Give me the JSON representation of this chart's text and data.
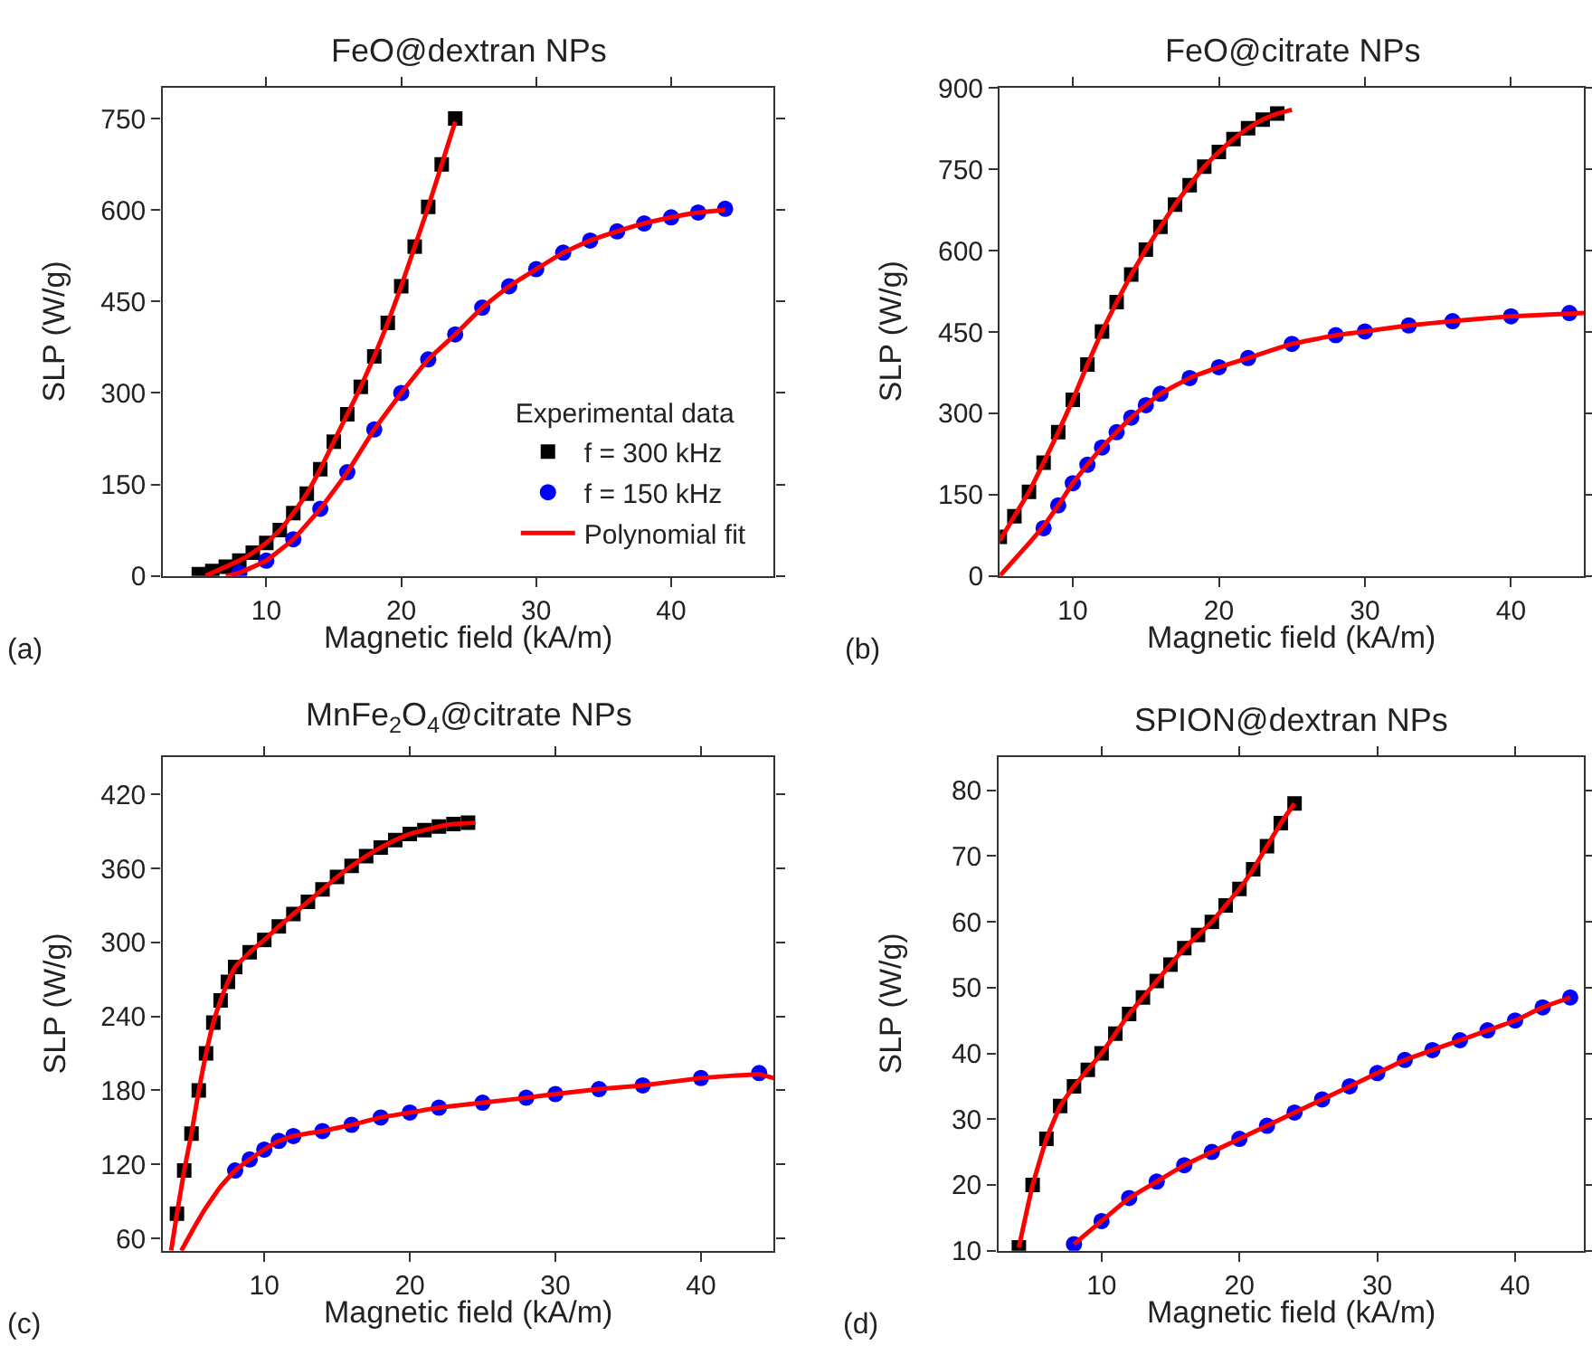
{
  "chart_data": [
    {
      "type": "scatter",
      "title": "FeO@dextran NPs",
      "xlabel": "Magnetic field (kA/m)",
      "ylabel": "SLP (W/g)",
      "annotations": [
        "(a)"
      ],
      "xlim": [
        2.3,
        47.6
      ],
      "xticks": [
        10,
        20,
        30,
        40
      ],
      "ylim": [
        0,
        800
      ],
      "yticks": [
        0,
        150,
        300,
        450,
        600,
        750
      ],
      "legend": "bottom right",
      "legend_title": "Experimental data",
      "series": [
        {
          "name": "f = 300 kHz",
          "marker": "square",
          "color": "#000000",
          "x": [
            5,
            6,
            7,
            8,
            9,
            10,
            11,
            12,
            13,
            14,
            15,
            16,
            17,
            18,
            19,
            20,
            21,
            22,
            23,
            24
          ],
          "values": [
            3,
            8,
            15,
            25,
            38,
            54,
            75,
            103,
            135,
            175,
            220,
            265,
            310,
            360,
            415,
            475,
            540,
            605,
            675,
            750
          ]
        },
        {
          "name": "f = 150 kHz",
          "marker": "circle",
          "color": "#0000ff",
          "x": [
            8,
            10,
            12,
            14,
            16,
            18,
            20,
            22,
            24,
            26,
            28,
            30,
            32,
            34,
            36,
            38,
            40,
            42,
            44
          ],
          "values": [
            5,
            25,
            60,
            110,
            170,
            240,
            300,
            355,
            396,
            440,
            475,
            503,
            530,
            550,
            565,
            578,
            588,
            596,
            602
          ]
        },
        {
          "name": "Polynomial fit",
          "type": "line",
          "marker": "none",
          "line_style": "solid",
          "color": "#ff0000",
          "x": [
            5.5,
            7,
            8,
            9,
            10,
            11,
            12,
            13,
            14,
            15,
            16,
            17,
            18,
            19,
            20,
            21,
            22,
            23,
            24
          ],
          "values": [
            0,
            15,
            25,
            38,
            54,
            75,
            103,
            135,
            175,
            220,
            265,
            310,
            360,
            415,
            475,
            540,
            605,
            675,
            745
          ]
        },
        {
          "type": "line",
          "marker": "none",
          "line_style": "solid",
          "color": "#ff0000",
          "x": [
            7,
            8,
            10,
            12,
            14,
            16,
            18,
            20,
            22,
            24,
            26,
            28,
            30,
            32,
            34,
            36,
            38,
            40,
            42,
            44
          ],
          "values": [
            0,
            5,
            25,
            60,
            110,
            170,
            240,
            300,
            355,
            396,
            440,
            475,
            503,
            530,
            550,
            565,
            578,
            588,
            596,
            600
          ]
        }
      ]
    },
    {
      "type": "scatter",
      "title": "FeO@citrate NPs",
      "xlabel": "Magnetic field (kA/m)",
      "ylabel": "SLP (W/g)",
      "annotations": [
        "(b)"
      ],
      "xlim": [
        5,
        45
      ],
      "xticks": [
        10,
        20,
        30,
        40
      ],
      "ylim": [
        0,
        900
      ],
      "yticks": [
        0,
        150,
        300,
        450,
        600,
        750,
        900
      ],
      "legend": false,
      "series": [
        {
          "marker": "square",
          "color": "#000000",
          "x": [
            5,
            6,
            7,
            8,
            9,
            10,
            11,
            12,
            13,
            14,
            15,
            16,
            17,
            18,
            19,
            20,
            21,
            22,
            23,
            24
          ],
          "values": [
            72,
            110,
            155,
            209,
            265,
            325,
            390,
            451,
            505,
            556,
            602,
            644,
            685,
            721,
            755,
            782,
            806,
            826,
            842,
            853
          ]
        },
        {
          "marker": "circle",
          "color": "#0000ff",
          "x": [
            8,
            9,
            10,
            11,
            12,
            13,
            14,
            15,
            16,
            18,
            20,
            22,
            25,
            28,
            30,
            33,
            36,
            40,
            44
          ],
          "values": [
            88,
            130,
            171,
            205,
            237,
            265,
            292,
            315,
            336,
            365,
            385,
            402,
            428,
            444,
            451,
            462,
            470,
            479,
            485
          ]
        },
        {
          "type": "line",
          "marker": "none",
          "line_style": "solid",
          "color": "#ff0000",
          "x": [
            5,
            6,
            7,
            8,
            9,
            10,
            11,
            12,
            13,
            14,
            15,
            16,
            17,
            18,
            19,
            20,
            21,
            22,
            23,
            24,
            25
          ],
          "values": [
            65,
            110,
            155,
            209,
            265,
            325,
            390,
            451,
            505,
            556,
            602,
            644,
            685,
            721,
            755,
            782,
            806,
            826,
            842,
            853,
            860
          ]
        },
        {
          "type": "line",
          "marker": "none",
          "line_style": "solid",
          "color": "#ff0000",
          "x": [
            5,
            6,
            7,
            8,
            9,
            10,
            11,
            12,
            13,
            14,
            15,
            16,
            18,
            20,
            22,
            25,
            28,
            30,
            33,
            36,
            40,
            45
          ],
          "values": [
            0,
            30,
            60,
            92,
            130,
            171,
            205,
            237,
            265,
            292,
            315,
            336,
            365,
            385,
            402,
            428,
            444,
            451,
            462,
            470,
            479,
            485
          ]
        }
      ]
    },
    {
      "type": "scatter",
      "title": "MnFe$_{2}$O$_{4}$@citrate NPs",
      "xlabel": "Magnetic field (kA/m)",
      "ylabel": "SLP (W/g)",
      "annotations": [
        "(c)"
      ],
      "xlim": [
        3,
        45
      ],
      "xticks": [
        10,
        20,
        30,
        40
      ],
      "ylim": [
        50,
        450
      ],
      "yticks": [
        60,
        120,
        180,
        240,
        300,
        360,
        420
      ],
      "legend": false,
      "series": [
        {
          "marker": "square",
          "color": "#000000",
          "x": [
            4,
            4.5,
            5,
            5.5,
            6,
            6.5,
            7,
            7.5,
            8,
            9,
            10,
            11,
            12,
            13,
            14,
            15,
            16,
            17,
            18,
            19,
            20,
            21,
            22,
            23,
            24
          ],
          "values": [
            80,
            115,
            145,
            180,
            210,
            235,
            253,
            268,
            280,
            292,
            302,
            313,
            323,
            333,
            343,
            353,
            362,
            370,
            377,
            383,
            388,
            391,
            394,
            396,
            397
          ]
        },
        {
          "marker": "circle",
          "color": "#0000ff",
          "x": [
            8,
            9,
            10,
            11,
            12,
            14,
            16,
            18,
            20,
            22,
            25,
            28,
            30,
            33,
            36,
            40,
            44
          ],
          "values": [
            115,
            124,
            132,
            139,
            143,
            147,
            152,
            158,
            162,
            166,
            170,
            174,
            177,
            181,
            184,
            190,
            194
          ]
        },
        {
          "type": "line",
          "marker": "none",
          "line_style": "solid",
          "color": "#ff0000",
          "x": [
            3.6,
            4,
            4.5,
            5,
            5.5,
            6,
            6.5,
            7,
            7.5,
            8,
            9,
            10,
            11,
            12,
            13,
            14,
            15,
            16,
            17,
            18,
            19,
            20,
            21,
            22,
            23,
            24.5
          ],
          "values": [
            50,
            80,
            115,
            145,
            180,
            210,
            235,
            253,
            268,
            280,
            292,
            302,
            313,
            323,
            333,
            343,
            353,
            362,
            370,
            377,
            383,
            388,
            391,
            394,
            396,
            397
          ]
        },
        {
          "type": "line",
          "marker": "none",
          "line_style": "solid",
          "color": "#ff0000",
          "x": [
            4.3,
            5,
            6,
            7,
            8,
            9,
            10,
            11,
            12,
            14,
            16,
            18,
            20,
            22,
            25,
            28,
            30,
            33,
            36,
            40,
            44,
            45
          ],
          "values": [
            50,
            65,
            85,
            102,
            115,
            124,
            132,
            139,
            143,
            147,
            152,
            158,
            162,
            166,
            170,
            174,
            177,
            181,
            184,
            190,
            193,
            190
          ]
        }
      ]
    },
    {
      "type": "scatter",
      "title": "SPION@dextran NPs",
      "xlabel": "Magnetic field (kA/m)",
      "ylabel": "SLP (W/g)",
      "annotations": [
        "(d)"
      ],
      "xlim": [
        2.5,
        45
      ],
      "xticks": [
        10,
        20,
        30,
        40
      ],
      "ylim": [
        10,
        85
      ],
      "yticks": [
        10,
        20,
        30,
        40,
        50,
        60,
        70,
        80
      ],
      "legend": false,
      "series": [
        {
          "marker": "square",
          "color": "#000000",
          "x": [
            4,
            5,
            6,
            7,
            8,
            9,
            10,
            11,
            12,
            13,
            14,
            15,
            16,
            17,
            18,
            19,
            20,
            21,
            22,
            23,
            24
          ],
          "values": [
            10.5,
            20,
            27,
            32,
            35,
            37.5,
            40,
            43,
            46,
            48.5,
            51,
            53.5,
            56,
            58,
            60,
            62.5,
            65,
            68,
            71.5,
            75,
            78
          ]
        },
        {
          "marker": "circle",
          "color": "#0000ff",
          "x": [
            8,
            10,
            12,
            14,
            16,
            18,
            20,
            22,
            24,
            26,
            28,
            30,
            32,
            34,
            36,
            38,
            40,
            42,
            44
          ],
          "values": [
            11,
            14.5,
            18,
            20.5,
            23,
            25,
            27,
            29,
            31,
            33,
            35,
            37,
            39,
            40.5,
            42,
            43.5,
            45,
            47,
            48.5
          ]
        },
        {
          "type": "line",
          "marker": "none",
          "line_style": "solid",
          "color": "#ff0000",
          "x": [
            4,
            5,
            6,
            7,
            8,
            9,
            10,
            11,
            12,
            13,
            14,
            15,
            16,
            17,
            18,
            19,
            20,
            21,
            22,
            23,
            24
          ],
          "values": [
            10.5,
            20,
            27,
            32,
            35,
            37.5,
            40,
            43,
            46,
            48.5,
            51,
            53.5,
            56,
            58,
            60,
            62.5,
            65,
            68,
            71.5,
            75,
            78
          ]
        },
        {
          "type": "line",
          "marker": "none",
          "line_style": "solid",
          "color": "#ff0000",
          "x": [
            8,
            10,
            12,
            14,
            16,
            18,
            20,
            22,
            24,
            26,
            28,
            30,
            32,
            34,
            36,
            38,
            40,
            42,
            44
          ],
          "values": [
            11,
            14.5,
            18,
            20.5,
            23,
            25,
            27,
            29,
            31,
            33,
            35,
            37,
            39,
            40.5,
            42,
            43.5,
            45,
            47,
            48.5
          ]
        }
      ]
    }
  ]
}
